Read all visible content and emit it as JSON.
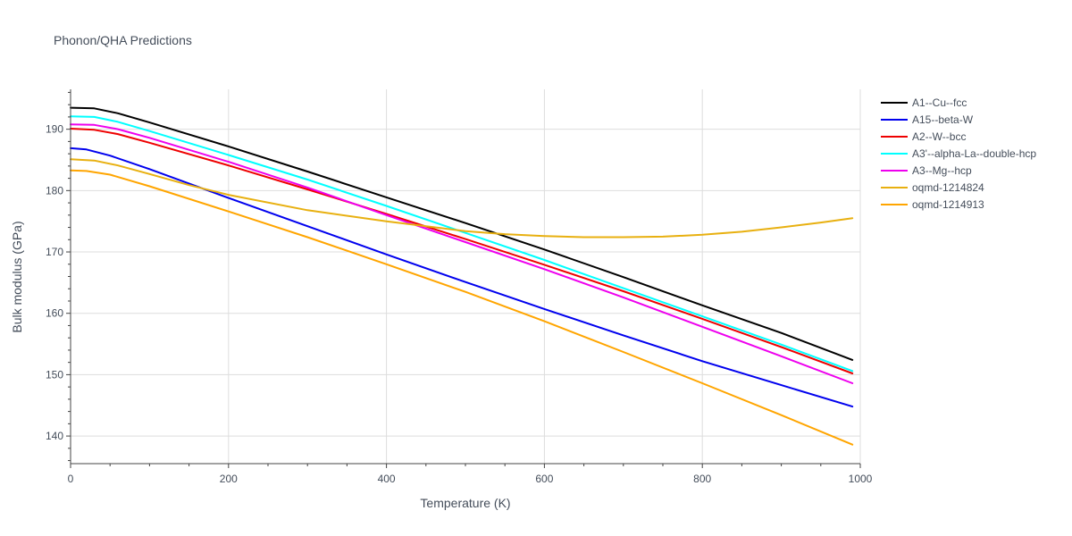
{
  "chart_data": {
    "type": "line",
    "title": "Phonon/QHA Predictions",
    "xlabel": "Temperature (K)",
    "ylabel": "Bulk modulus (GPa)",
    "xlim": [
      0,
      1000
    ],
    "ylim": [
      135.5,
      196.5
    ],
    "xticks": [
      0,
      200,
      400,
      600,
      800,
      1000
    ],
    "yticks": [
      140,
      150,
      160,
      170,
      180,
      190
    ],
    "grid": true,
    "legend_position": "top-right",
    "series": [
      {
        "name": "A1--Cu--fcc",
        "color": "#000000",
        "x": [
          0,
          30,
          60,
          100,
          200,
          300,
          400,
          500,
          600,
          700,
          800,
          900,
          990
        ],
        "y": [
          193.5,
          193.4,
          192.6,
          191.1,
          187.2,
          183.1,
          178.9,
          174.7,
          170.4,
          165.9,
          161.3,
          156.8,
          152.4
        ]
      },
      {
        "name": "A15--beta-W",
        "color": "#0000ee",
        "x": [
          0,
          20,
          50,
          100,
          200,
          300,
          400,
          500,
          600,
          700,
          800,
          900,
          990
        ],
        "y": [
          186.9,
          186.7,
          185.7,
          183.5,
          178.8,
          174.2,
          169.6,
          165.1,
          160.7,
          156.4,
          152.2,
          148.3,
          144.8
        ]
      },
      {
        "name": "A2--W--bcc",
        "color": "#ee0000",
        "x": [
          0,
          30,
          60,
          100,
          200,
          300,
          400,
          500,
          600,
          700,
          800,
          900,
          990
        ],
        "y": [
          190.1,
          189.9,
          189.2,
          187.8,
          184.1,
          180.2,
          176.2,
          172.1,
          167.9,
          163.6,
          159.1,
          154.5,
          150.2
        ]
      },
      {
        "name": "A3'--alpha-La--double-hcp",
        "color": "#00ffff",
        "x": [
          0,
          30,
          60,
          100,
          200,
          300,
          400,
          500,
          600,
          700,
          800,
          900,
          990
        ],
        "y": [
          192.1,
          192.0,
          191.2,
          189.7,
          185.8,
          181.8,
          177.5,
          173.1,
          168.7,
          164.1,
          159.5,
          154.9,
          150.6
        ]
      },
      {
        "name": "A3--Mg--hcp",
        "color": "#ee00ee",
        "x": [
          0,
          30,
          60,
          100,
          200,
          300,
          400,
          500,
          600,
          700,
          800,
          900,
          990
        ],
        "y": [
          190.8,
          190.7,
          190.0,
          188.6,
          184.7,
          180.5,
          176.0,
          171.6,
          167.2,
          162.6,
          157.8,
          153.0,
          148.6
        ]
      },
      {
        "name": "oqmd-1214824",
        "color": "#e8b010",
        "x": [
          0,
          30,
          60,
          100,
          150,
          200,
          300,
          400,
          500,
          550,
          600,
          650,
          700,
          750,
          800,
          850,
          900,
          950,
          990
        ],
        "y": [
          185.1,
          184.9,
          184.1,
          182.7,
          180.9,
          179.3,
          176.8,
          175.0,
          173.4,
          172.9,
          172.6,
          172.4,
          172.4,
          172.5,
          172.8,
          173.3,
          174.0,
          174.8,
          175.5
        ]
      },
      {
        "name": "oqmd-1214913",
        "color": "#ffa500",
        "x": [
          0,
          20,
          50,
          100,
          200,
          300,
          400,
          500,
          600,
          700,
          800,
          900,
          990
        ],
        "y": [
          183.3,
          183.2,
          182.6,
          180.7,
          176.6,
          172.4,
          168.0,
          163.5,
          158.7,
          153.7,
          148.6,
          143.4,
          138.6
        ]
      }
    ]
  }
}
